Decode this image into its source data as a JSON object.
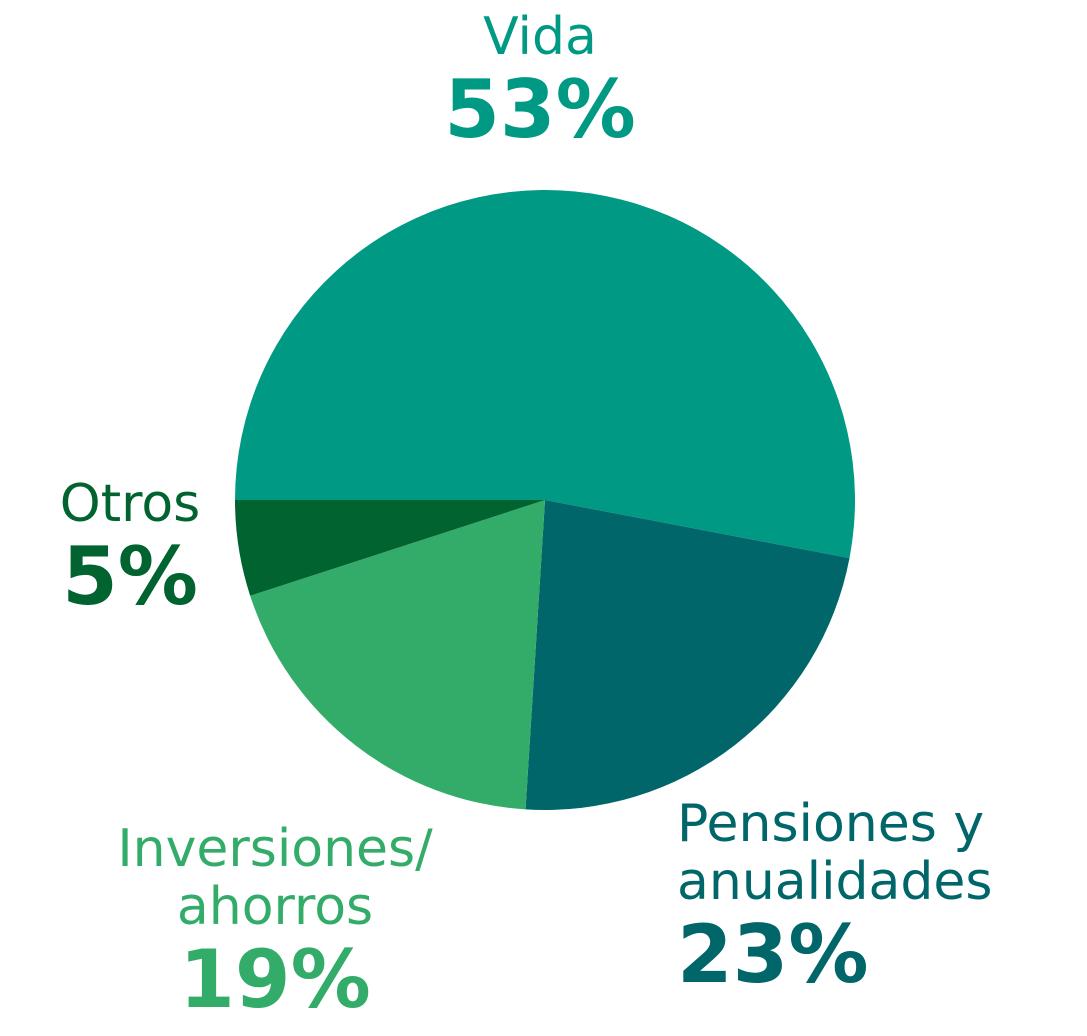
{
  "chart_data": {
    "type": "pie",
    "categories": [
      "Vida",
      "Pensiones y anualidades",
      "Inversiones/ ahorros",
      "Otros"
    ],
    "values": [
      53,
      23,
      19,
      5
    ],
    "value_labels": [
      "53%",
      "23%",
      "19%",
      "5%"
    ],
    "colors": [
      "#009a84",
      "#00666a",
      "#33ac6a",
      "#006330"
    ]
  }
}
